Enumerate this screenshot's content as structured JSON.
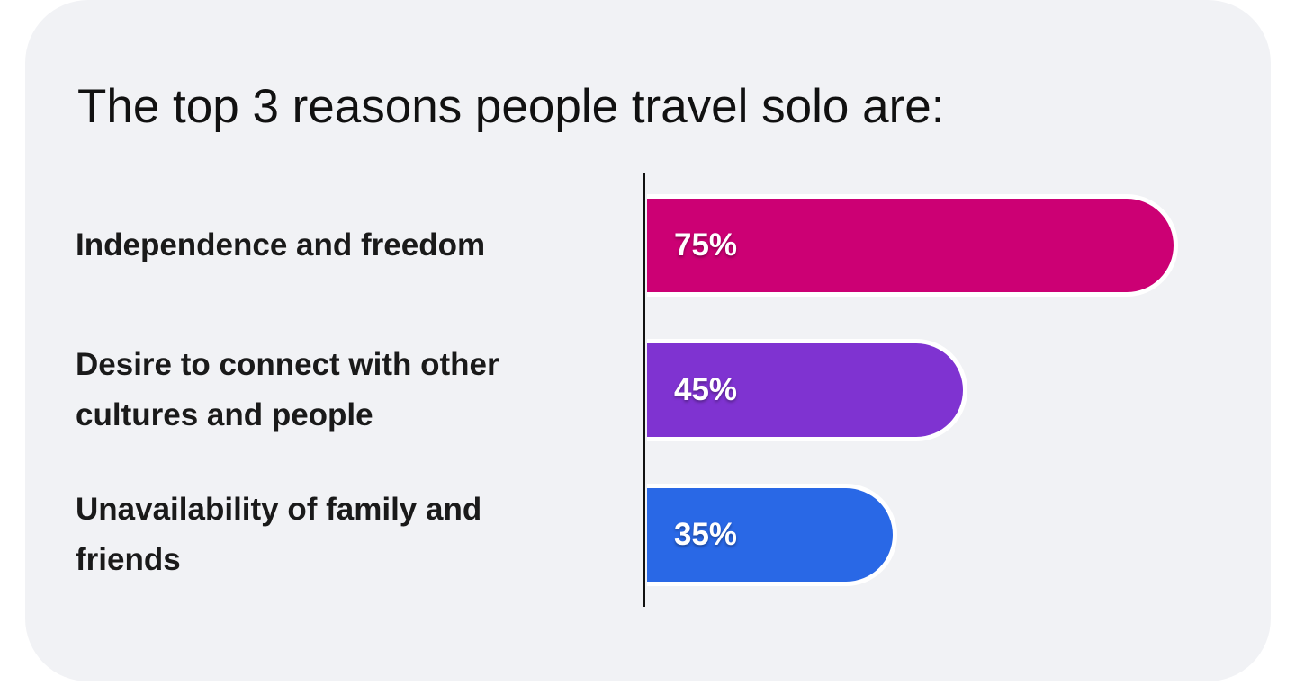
{
  "chart_data": {
    "type": "bar",
    "orientation": "horizontal",
    "title": "The top 3 reasons people travel solo are:",
    "categories": [
      "Independence and freedom",
      "Desire to connect with other cultures and people",
      "Unavailability of family and friends"
    ],
    "values": [
      75,
      45,
      35
    ],
    "value_labels": [
      "75%",
      "45%",
      "35%"
    ],
    "colors": [
      "#cc0074",
      "#7f33d1",
      "#2968e6"
    ]
  }
}
